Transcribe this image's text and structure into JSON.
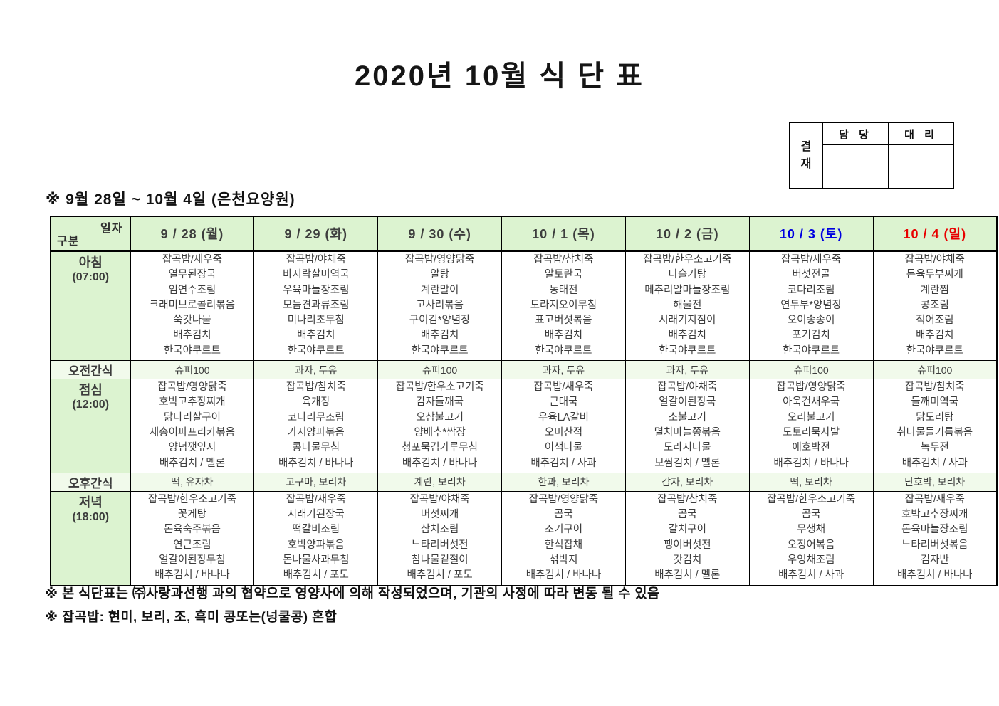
{
  "title": "2020년 10월 식 단 표",
  "approval": {
    "stamp": [
      "결",
      "재"
    ],
    "columns": [
      "담 당",
      "대 리"
    ]
  },
  "subtitle": "※ 9월 28일 ~ 10월 4일 (은천요양원)",
  "colors": {
    "header_bg": "#dcf3d0",
    "snack_bg": "#f1faeb",
    "weekday_text": "#3d3d3d",
    "saturday_text": "#0000e0",
    "sunday_text": "#e80000"
  },
  "table": {
    "corner": {
      "top": "일자",
      "bottom": "구분"
    },
    "days": [
      {
        "label": "9 / 28 (월)",
        "color": "#3d3d3d"
      },
      {
        "label": "9 / 29 (화)",
        "color": "#3d3d3d"
      },
      {
        "label": "9 / 30 (수)",
        "color": "#3d3d3d"
      },
      {
        "label": "10 / 1 (목)",
        "color": "#3d3d3d"
      },
      {
        "label": "10 / 2 (금)",
        "color": "#3d3d3d"
      },
      {
        "label": "10 / 3 (토)",
        "color": "#0000e0"
      },
      {
        "label": "10 / 4 (일)",
        "color": "#e80000"
      }
    ],
    "rows": [
      {
        "name": "아침",
        "time": "(07:00)",
        "type": "meal",
        "cells": [
          [
            "잡곡밥/새우죽",
            "열무된장국",
            "임연수조림",
            "크래미브로콜리볶음",
            "쑥갓나물",
            "배추김치",
            "한국야쿠르트"
          ],
          [
            "잡곡밥/야채죽",
            "바지락살미역국",
            "우육마늘장조림",
            "모듬견과류조림",
            "미나리초무침",
            "배추김치",
            "한국야쿠르트"
          ],
          [
            "잡곡밥/영양닭죽",
            "알탕",
            "계란말이",
            "고사리볶음",
            "구이김*양념장",
            "배추김치",
            "한국야쿠르트"
          ],
          [
            "잡곡밥/참치죽",
            "알토란국",
            "동태전",
            "도라지오이무침",
            "표고버섯볶음",
            "배추김치",
            "한국야쿠르트"
          ],
          [
            "잡곡밥/한우소고기죽",
            "다슬기탕",
            "메추리알마늘장조림",
            "해물전",
            "시래기지짐이",
            "배추김치",
            "한국야쿠르트"
          ],
          [
            "잡곡밥/새우죽",
            "버섯전골",
            "코다리조림",
            "연두부*양념장",
            "오이송송이",
            "포기김치",
            "한국야쿠르트"
          ],
          [
            "잡곡밥/야채죽",
            "돈육두부찌개",
            "계란찜",
            "콩조림",
            "적어조림",
            "배추김치",
            "한국야쿠르트"
          ]
        ]
      },
      {
        "name": "오전간식",
        "type": "snack",
        "cells": [
          "슈퍼100",
          "과자, 두유",
          "슈퍼100",
          "과자, 두유",
          "과자, 두유",
          "슈퍼100",
          "슈퍼100"
        ]
      },
      {
        "name": "점심",
        "time": "(12:00)",
        "type": "meal",
        "cells": [
          [
            "잡곡밥/영양닭죽",
            "호박고추장찌개",
            "닭다리살구이",
            "새송이파프리카볶음",
            "양념깻잎지",
            "배추김치 / 멜론"
          ],
          [
            "잡곡밥/참치죽",
            "육개장",
            "코다리무조림",
            "가지양파볶음",
            "콩나물무침",
            "배추김치 / 바나나"
          ],
          [
            "잡곡밥/한우소고기죽",
            "감자들깨국",
            "오삼불고기",
            "양배추*쌈장",
            "청포묵김가루무침",
            "배추김치 / 바나나"
          ],
          [
            "잡곡밥/새우죽",
            "근대국",
            "우육LA갈비",
            "오미산적",
            "이색나물",
            "배추김치 / 사과"
          ],
          [
            "잡곡밥/야채죽",
            "얼갈이된장국",
            "소불고기",
            "멸치마늘쫑볶음",
            "도라지나물",
            "보쌈김치 / 멜론"
          ],
          [
            "잡곡밥/영양닭죽",
            "아욱건새우국",
            "오리불고기",
            "도토리묵사발",
            "애호박전",
            "배추김치 / 바나나"
          ],
          [
            "잡곡밥/참치죽",
            "들깨미역국",
            "닭도리탕",
            "취나물들기름볶음",
            "녹두전",
            "배추김치 / 사과"
          ]
        ]
      },
      {
        "name": "오후간식",
        "type": "snack",
        "cells": [
          "떡, 유자차",
          "고구마, 보리차",
          "계란, 보리차",
          "한과, 보리차",
          "감자, 보리차",
          "떡, 보리차",
          "단호박, 보리차"
        ]
      },
      {
        "name": "저녁",
        "time": "(18:00)",
        "type": "meal",
        "cells": [
          [
            "잡곡밥/한우소고기죽",
            "꽃게탕",
            "돈육숙주볶음",
            "연근조림",
            "얼갈이된장무침",
            "배추김치 / 바나나"
          ],
          [
            "잡곡밥/새우죽",
            "시래기된장국",
            "떡갈비조림",
            "호박양파볶음",
            "돈나물사과무침",
            "배추김치 / 포도"
          ],
          [
            "잡곡밥/야채죽",
            "버섯찌개",
            "삼치조림",
            "느타리버섯전",
            "참나물겉절이",
            "배추김치 / 포도"
          ],
          [
            "잡곡밥/영양닭죽",
            "곰국",
            "조기구이",
            "한식잡채",
            "섞박지",
            "배추김치 / 바나나"
          ],
          [
            "잡곡밥/참치죽",
            "곰국",
            "갈치구이",
            "팽이버섯전",
            "갓김치",
            "배추김치 / 멜론"
          ],
          [
            "잡곡밥/한우소고기죽",
            "곰국",
            "무생채",
            "오징어볶음",
            "우엉채조림",
            "배추김치 / 사과"
          ],
          [
            "잡곡밥/새우죽",
            "호박고추장찌개",
            "돈육마늘장조림",
            "느타리버섯볶음",
            "김자반",
            "배추김치 / 바나나"
          ]
        ]
      }
    ]
  },
  "notes": [
    "※ 본 식단표는 ㈜사랑과선행 과의 협약으로 영양사에 의해 작성되었으며, 기관의 사정에 따라 변동 될 수 있음",
    "※ 잡곡밥: 현미, 보리, 조, 흑미 콩또는(넝쿨콩) 혼합"
  ]
}
